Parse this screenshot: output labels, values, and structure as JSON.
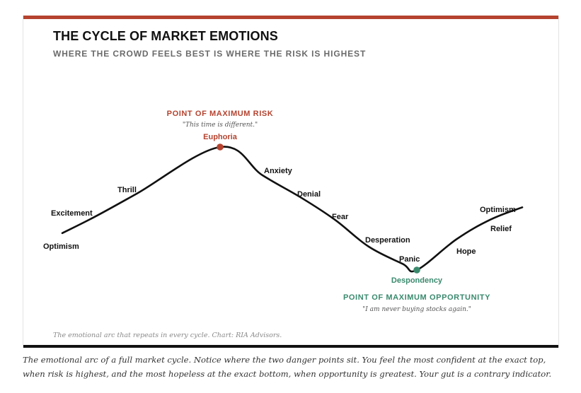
{
  "header": {
    "title": "THE CYCLE OF MARKET EMOTIONS",
    "subtitle": "WHERE THE CROWD FEELS BEST IS WHERE THE RISK IS HIGHEST"
  },
  "colors": {
    "accent_red": "#b5432f",
    "accent_green": "#3a8a6e",
    "line": "#111111"
  },
  "chart_data": {
    "type": "line",
    "title": "THE CYCLE OF MARKET EMOTIONS",
    "subtitle": "WHERE THE CROWD FEELS BEST IS WHERE THE RISK IS HIGHEST",
    "stages": [
      {
        "label": "Optimism",
        "y": 0.3
      },
      {
        "label": "Excitement",
        "y": 0.43
      },
      {
        "label": "Thrill",
        "y": 0.62
      },
      {
        "label": "Euphoria",
        "y": 1.0,
        "marker": "red"
      },
      {
        "label": "Anxiety",
        "y": 0.77
      },
      {
        "label": "Denial",
        "y": 0.59
      },
      {
        "label": "Fear",
        "y": 0.41
      },
      {
        "label": "Desperation",
        "y": 0.19
      },
      {
        "label": "Panic",
        "y": 0.05
      },
      {
        "label": "Despondency",
        "y": 0.0,
        "marker": "green"
      },
      {
        "label": "Hope",
        "y": 0.25
      },
      {
        "label": "Relief",
        "y": 0.41
      },
      {
        "label": "Optimism",
        "y": 0.51
      }
    ],
    "annotations": [
      {
        "text": "POINT OF MAXIMUM RISK",
        "quote": "\"This time is different.\"",
        "at": "Euphoria"
      },
      {
        "text": "POINT OF MAXIMUM OPPORTUNITY",
        "quote": "\"I am never buying stocks again.\"",
        "at": "Despondency"
      }
    ],
    "axes": "none",
    "grid": false,
    "legend": "none"
  },
  "footnote": "The emotional arc that repeats in every cycle. Chart: RIA Advisors.",
  "caption": "The emotional arc of a full market cycle. Notice where the two danger points sit. You feel the most confident at the exact top, when risk is highest, and the most hopeless at the exact bottom, when opportunity is greatest. Your gut is a contrary indicator."
}
